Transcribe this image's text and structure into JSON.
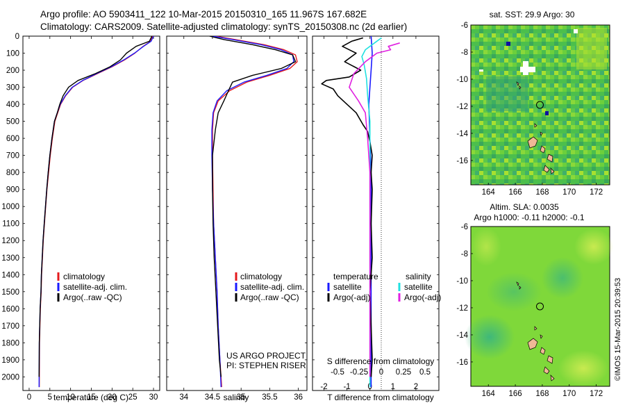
{
  "header": {
    "title_line1": "Argo profile: AO 5903411_122 10-Mar-2015 20150310_165 11.967S 167.682E",
    "title_line2": "Climatology: CARS2009. Satellite-adjusted climatology: synTS_20150308.nc (2d earlier)"
  },
  "credit": "©IMOS 15-Mar-2015 20:39:53",
  "colors": {
    "climatology": "#e41a1c",
    "satellite": "#1a1aff",
    "argo": "#000000",
    "sat_salinity": "#20e0e0",
    "argo_salinity": "#e020e0",
    "land": "#f0b896",
    "sst_base": "#4fc04a",
    "sla_base": "#7fd83a"
  },
  "chart_data": [
    {
      "id": "temperature",
      "type": "line",
      "xlabel": "temperature (deg C)",
      "xlim": [
        -1.5,
        31.5
      ],
      "xticks": [
        0,
        5,
        10,
        15,
        20,
        25,
        30
      ],
      "ylim": [
        0,
        2080
      ],
      "yticks": [
        0,
        100,
        200,
        300,
        400,
        500,
        600,
        700,
        800,
        900,
        1000,
        1100,
        1200,
        1300,
        1400,
        1500,
        1600,
        1700,
        1800,
        1900,
        2000
      ],
      "legend": [
        "climatology",
        "satellite-adj. clim.",
        "Argo(..raw -QC)"
      ],
      "series": [
        {
          "name": "climatology",
          "color_key": "climatology",
          "x": [
            29.8,
            29.3,
            27.5,
            25.5,
            23.0,
            20.0,
            16.5,
            13.0,
            10.5,
            8.8,
            7.6,
            6.9,
            6.2,
            5.6,
            5.1,
            4.7,
            4.3,
            4.0,
            3.7,
            3.4,
            3.2,
            3.0,
            2.9,
            2.7,
            2.6,
            2.5,
            2.45
          ],
          "y": [
            0,
            30,
            60,
            100,
            140,
            180,
            220,
            260,
            300,
            350,
            400,
            450,
            500,
            600,
            700,
            800,
            900,
            1000,
            1100,
            1200,
            1300,
            1400,
            1500,
            1600,
            1700,
            1800,
            2060
          ]
        },
        {
          "name": "satellite-adj. clim.",
          "color_key": "satellite",
          "x": [
            30.0,
            29.4,
            27.6,
            25.4,
            22.8,
            19.8,
            16.3,
            12.9,
            10.4,
            8.7,
            7.5,
            6.8,
            6.1,
            5.5,
            5.0,
            4.6,
            4.25,
            3.95,
            3.65,
            3.35,
            3.15,
            2.95,
            2.85,
            2.65,
            2.55,
            2.45,
            2.4
          ],
          "y": [
            0,
            30,
            60,
            100,
            140,
            180,
            220,
            260,
            300,
            350,
            400,
            450,
            500,
            600,
            700,
            800,
            900,
            1000,
            1100,
            1200,
            1300,
            1400,
            1500,
            1600,
            1700,
            1800,
            2060
          ]
        },
        {
          "name": "Argo(..raw -QC)",
          "color_key": "argo",
          "x": [
            29.6,
            29.0,
            25.8,
            23.5,
            22.0,
            19.5,
            16.0,
            11.8,
            9.5,
            8.2,
            7.4,
            6.8,
            6.1,
            5.5,
            5.0,
            4.6,
            4.25,
            3.95,
            3.65,
            3.35,
            3.15,
            2.95,
            2.85,
            2.65,
            2.55,
            2.45,
            2.4
          ],
          "y": [
            0,
            30,
            60,
            100,
            140,
            180,
            220,
            260,
            300,
            350,
            400,
            450,
            500,
            600,
            700,
            800,
            900,
            1000,
            1100,
            1200,
            1300,
            1400,
            1500,
            1600,
            1700,
            1800,
            2000
          ]
        }
      ]
    },
    {
      "id": "salinity",
      "type": "line",
      "xlabel": "salinity",
      "xlim": [
        33.7,
        36.15
      ],
      "xticks": [
        34,
        34.5,
        35,
        35.5,
        36
      ],
      "ylim": [
        0,
        2080
      ],
      "legend": [
        "climatology",
        "satellite-adj. clim.",
        "Argo(..raw -QC)"
      ],
      "annotation": [
        "US ARGO PROJECT",
        "PI: STEPHEN RISER"
      ],
      "series": [
        {
          "name": "climatology",
          "color_key": "climatology",
          "x": [
            34.55,
            34.9,
            35.4,
            35.75,
            35.95,
            35.98,
            35.85,
            35.5,
            35.1,
            34.8,
            34.6,
            34.52,
            34.5,
            34.5,
            34.51,
            34.52,
            34.55,
            34.58,
            34.6,
            34.63,
            34.66
          ],
          "y": [
            0,
            20,
            50,
            80,
            110,
            150,
            190,
            230,
            270,
            320,
            380,
            450,
            550,
            700,
            900,
            1100,
            1300,
            1500,
            1700,
            1900,
            2060
          ]
        },
        {
          "name": "satellite-adj. clim.",
          "color_key": "satellite",
          "x": [
            34.5,
            34.85,
            35.35,
            35.7,
            35.9,
            35.92,
            35.8,
            35.45,
            35.05,
            34.75,
            34.58,
            34.51,
            34.49,
            34.49,
            34.5,
            34.52,
            34.55,
            34.58,
            34.6,
            34.63,
            34.65
          ],
          "y": [
            0,
            20,
            50,
            80,
            110,
            150,
            190,
            230,
            270,
            320,
            380,
            450,
            550,
            700,
            900,
            1100,
            1300,
            1500,
            1700,
            1900,
            2060
          ]
        },
        {
          "name": "Argo(..raw -QC)",
          "color_key": "argo",
          "x": [
            34.45,
            34.7,
            35.2,
            35.6,
            35.9,
            35.95,
            35.7,
            35.2,
            34.85,
            34.78,
            34.7,
            34.6,
            34.55,
            34.5,
            34.5,
            34.51,
            34.53,
            34.56,
            34.59,
            34.62,
            34.65
          ],
          "y": [
            0,
            20,
            50,
            80,
            110,
            150,
            190,
            230,
            270,
            320,
            380,
            450,
            550,
            700,
            900,
            1100,
            1300,
            1500,
            1700,
            1900,
            2000
          ]
        }
      ]
    },
    {
      "id": "difference",
      "type": "line",
      "xlabel": "T difference from climatology",
      "xlabel_top": "S difference from climatology",
      "xlim": [
        -2.5,
        3.0
      ],
      "xticks": [
        -2,
        -1,
        0,
        1,
        2
      ],
      "xticks_S": [
        "-0.5",
        "-0.25",
        "0",
        "0.25",
        "0.5"
      ],
      "ylim": [
        0,
        2080
      ],
      "legend_left": {
        "title": "temperature",
        "entries": [
          "satellite",
          "Argo(-adj)"
        ]
      },
      "legend_right": {
        "title": "salinity",
        "entries": [
          "satellite",
          "Argo(-adj)"
        ]
      },
      "series": [
        {
          "name": "T satellite",
          "color_key": "satellite",
          "x": [
            0.05,
            0.1,
            0.05,
            0.0,
            -0.05,
            0.0,
            0.05,
            0.05,
            0.05,
            0.05,
            0.05,
            0.05
          ],
          "y": [
            0,
            100,
            200,
            300,
            400,
            600,
            800,
            1000,
            1300,
            1600,
            1900,
            2060
          ]
        },
        {
          "name": "T Argo(-adj)",
          "color_key": "argo",
          "x": [
            -0.3,
            -0.8,
            -1.2,
            -0.6,
            -1.1,
            -0.4,
            -0.9,
            -1.9,
            -2.1,
            -1.6,
            -1.4,
            -1.0,
            -0.6,
            -0.3,
            -0.1,
            0.0,
            0.1,
            0.05,
            0.1,
            0.05,
            0.1,
            0.0,
            0.05,
            0.1,
            0.05
          ],
          "y": [
            10,
            30,
            60,
            100,
            150,
            200,
            240,
            260,
            280,
            310,
            350,
            400,
            450,
            520,
            560,
            620,
            700,
            800,
            900,
            1100,
            1300,
            1500,
            1700,
            1900,
            2000
          ]
        },
        {
          "name": "S satellite",
          "color_key": "sat_salinity",
          "x": [
            0.5,
            0.2,
            -0.2,
            -0.35,
            -0.25,
            -0.15,
            -0.1,
            0.0,
            0.0,
            0.0,
            0.0,
            0.0
          ],
          "y": [
            10,
            40,
            80,
            120,
            170,
            250,
            350,
            500,
            800,
            1200,
            1600,
            2060
          ]
        },
        {
          "name": "S Argo(-adj)",
          "color_key": "argo_salinity",
          "x": [
            1.3,
            0.8,
            0.9,
            0.3,
            -0.2,
            -0.7,
            -0.9,
            -0.5,
            -0.2,
            -0.1,
            0.0,
            0.0,
            0.0
          ],
          "y": [
            40,
            60,
            80,
            100,
            150,
            220,
            300,
            380,
            450,
            600,
            800,
            1200,
            2000
          ]
        }
      ]
    },
    {
      "id": "sst_map",
      "type": "heatmap",
      "title": "sat. SST: 29.9 Argo: 30",
      "xlim": [
        162.7,
        173.0
      ],
      "ylim": [
        -17.8,
        -6
      ],
      "xticks": [
        164,
        166,
        168,
        170,
        172
      ],
      "yticks": [
        -6,
        -8,
        -10,
        -12,
        -14,
        -16
      ],
      "argo_marker": {
        "lon": 167.682,
        "lat": -11.967
      }
    },
    {
      "id": "sla_map",
      "type": "heatmap",
      "title": "Altim. SLA: 0.0035",
      "subtitle": "Argo h1000: -0.11 h2000: -0.1",
      "xlim": [
        162.7,
        173.0
      ],
      "ylim": [
        -17.8,
        -6
      ],
      "xticks": [
        164,
        166,
        168,
        170,
        172
      ],
      "yticks": [
        -6,
        -8,
        -10,
        -12,
        -14,
        -16
      ],
      "argo_marker": {
        "lon": 167.682,
        "lat": -11.967
      }
    }
  ]
}
